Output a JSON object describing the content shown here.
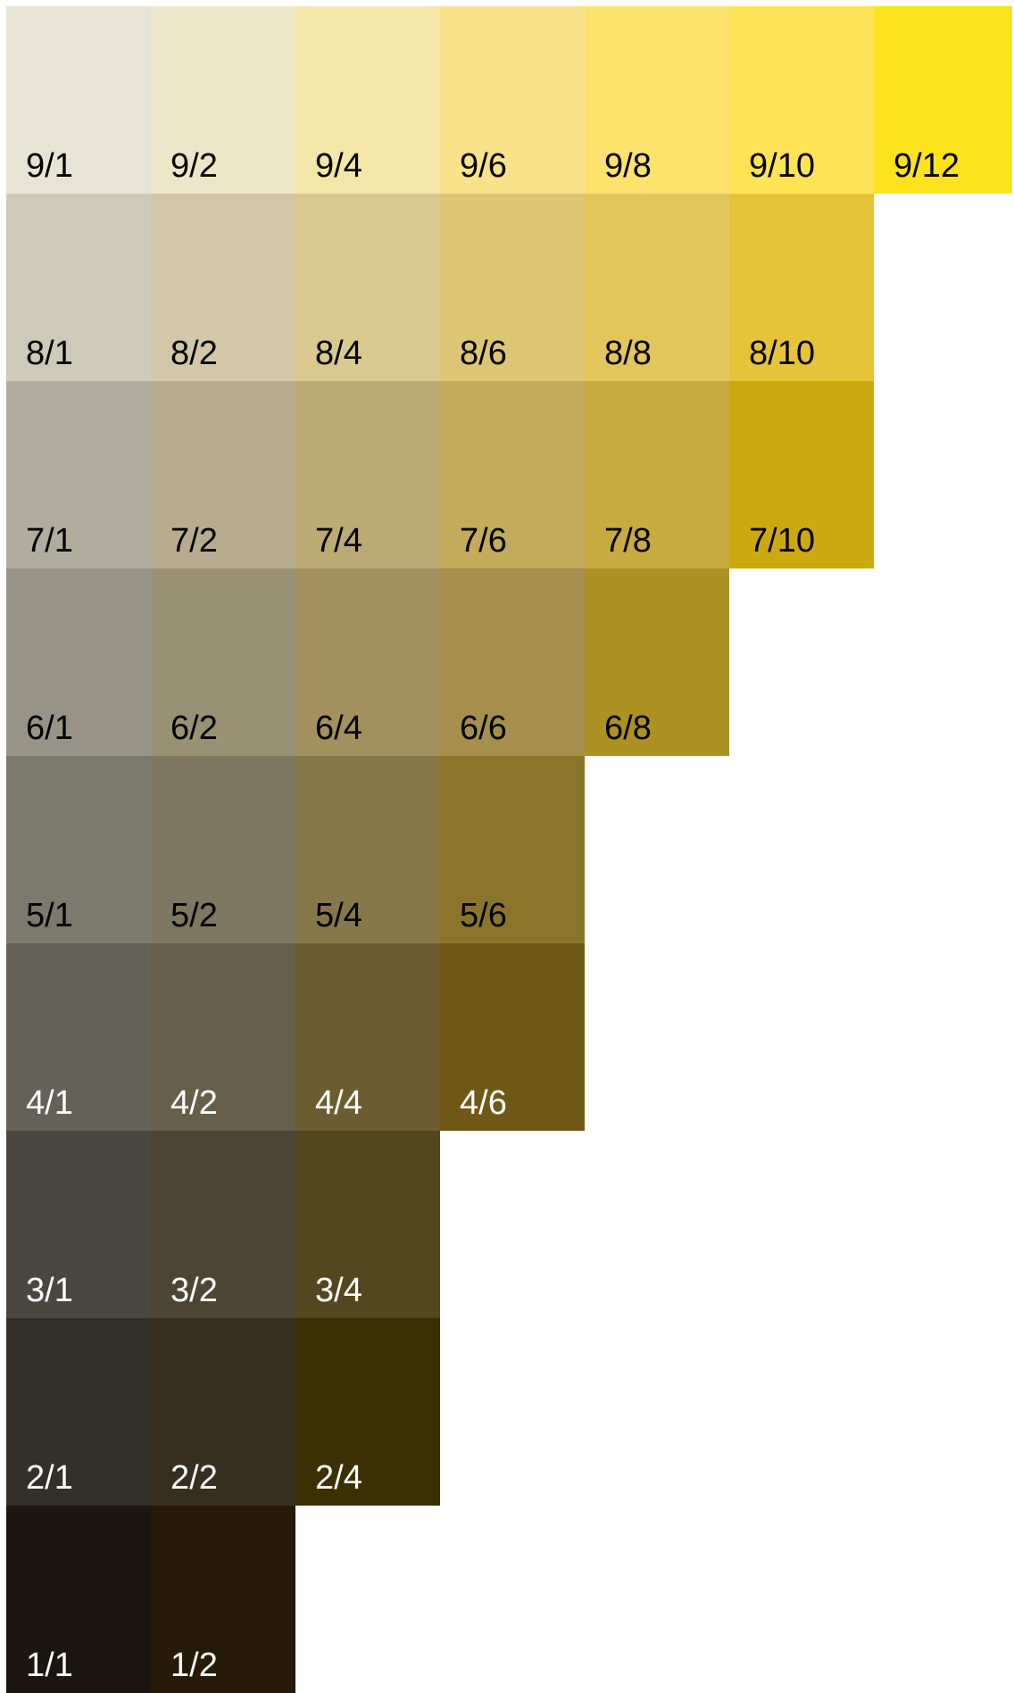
{
  "chart_data": {
    "type": "table",
    "rows": [
      {
        "value": 9,
        "swatches": [
          {
            "label": "9/1",
            "color": "#E7E4D5",
            "text_color": "#000000"
          },
          {
            "label": "9/2",
            "color": "#EEE6C8",
            "text_color": "#000000"
          },
          {
            "label": "9/4",
            "color": "#F4E6A8",
            "text_color": "#000000"
          },
          {
            "label": "9/6",
            "color": "#F9E38A",
            "text_color": "#000000"
          },
          {
            "label": "9/8",
            "color": "#FEE26E",
            "text_color": "#000000"
          },
          {
            "label": "9/10",
            "color": "#FFE357",
            "text_color": "#000000"
          },
          {
            "label": "9/12",
            "color": "#FDE31C",
            "text_color": "#000000"
          }
        ]
      },
      {
        "value": 8,
        "swatches": [
          {
            "label": "8/1",
            "color": "#CDCABA",
            "text_color": "#000000"
          },
          {
            "label": "8/2",
            "color": "#D2C7A8",
            "text_color": "#000000"
          },
          {
            "label": "8/4",
            "color": "#D9C98E",
            "text_color": "#000000"
          },
          {
            "label": "8/6",
            "color": "#DDC673",
            "text_color": "#000000"
          },
          {
            "label": "8/8",
            "color": "#E2C65C",
            "text_color": "#000000"
          },
          {
            "label": "8/10",
            "color": "#E6C43A",
            "text_color": "#000000"
          }
        ]
      },
      {
        "value": 7,
        "swatches": [
          {
            "label": "7/1",
            "color": "#B0AD9F",
            "text_color": "#000000"
          },
          {
            "label": "7/2",
            "color": "#B7AD8E",
            "text_color": "#000000"
          },
          {
            "label": "7/4",
            "color": "#BCAA75",
            "text_color": "#000000"
          },
          {
            "label": "7/6",
            "color": "#C2AB5A",
            "text_color": "#000000"
          },
          {
            "label": "7/8",
            "color": "#C7AA40",
            "text_color": "#000000"
          },
          {
            "label": "7/10",
            "color": "#CCA90F",
            "text_color": "#000000"
          }
        ]
      },
      {
        "value": 6,
        "swatches": [
          {
            "label": "6/1",
            "color": "#979386",
            "text_color": "#000000"
          },
          {
            "label": "6/2",
            "color": "#989174",
            "text_color": "#000000"
          },
          {
            "label": "6/4",
            "color": "#A2915F",
            "text_color": "#000000"
          },
          {
            "label": "6/6",
            "color": "#A68F4D",
            "text_color": "#000000"
          },
          {
            "label": "6/8",
            "color": "#AC9123",
            "text_color": "#000000"
          }
        ]
      },
      {
        "value": 5,
        "swatches": [
          {
            "label": "5/1",
            "color": "#7C796D",
            "text_color": "#000000"
          },
          {
            "label": "5/2",
            "color": "#7E7861",
            "text_color": "#000000"
          },
          {
            "label": "5/4",
            "color": "#87784A",
            "text_color": "#000000"
          },
          {
            "label": "5/6",
            "color": "#8B752B",
            "text_color": "#000000"
          }
        ]
      },
      {
        "value": 4,
        "swatches": [
          {
            "label": "4/1",
            "color": "#646157",
            "text_color": "#FFFFFF"
          },
          {
            "label": "4/2",
            "color": "#665F49",
            "text_color": "#FFFFFF"
          },
          {
            "label": "4/4",
            "color": "#6C5D31",
            "text_color": "#FFFFFF"
          },
          {
            "label": "4/6",
            "color": "#705917",
            "text_color": "#FFFFFF"
          }
        ]
      },
      {
        "value": 3,
        "swatches": [
          {
            "label": "3/1",
            "color": "#4A4741",
            "text_color": "#FFFFFF"
          },
          {
            "label": "3/2",
            "color": "#4C4533",
            "text_color": "#FFFFFF"
          },
          {
            "label": "3/4",
            "color": "#54461F",
            "text_color": "#FFFFFF"
          }
        ]
      },
      {
        "value": 2,
        "swatches": [
          {
            "label": "2/1",
            "color": "#332F29",
            "text_color": "#FFFFFF"
          },
          {
            "label": "2/2",
            "color": "#362F1F",
            "text_color": "#FFFFFF"
          },
          {
            "label": "2/4",
            "color": "#3C2F03",
            "text_color": "#FFFFFF"
          }
        ]
      },
      {
        "value": 1,
        "swatches": [
          {
            "label": "1/1",
            "color": "#1C1611",
            "text_color": "#FFFFFF"
          },
          {
            "label": "1/2",
            "color": "#251B08",
            "text_color": "#FFFFFF"
          }
        ]
      }
    ]
  }
}
